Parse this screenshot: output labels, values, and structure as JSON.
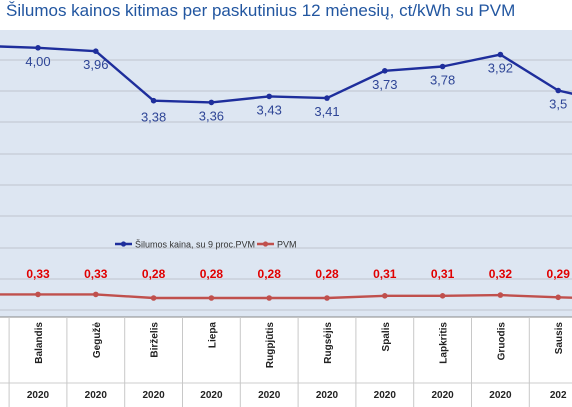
{
  "chart_data": {
    "type": "line",
    "title": "Šilumos kainos kitimas per paskutinius 12 mėnesių, ct/kWh su PVM",
    "categories": [
      {
        "month": "Balandis",
        "year": "2020"
      },
      {
        "month": "Gegužė",
        "year": "2020"
      },
      {
        "month": "Birželis",
        "year": "2020"
      },
      {
        "month": "Liepa",
        "year": "2020"
      },
      {
        "month": "Rugpjūtis",
        "year": "2020"
      },
      {
        "month": "Rugsėjis",
        "year": "2020"
      },
      {
        "month": "Spalis",
        "year": "2020"
      },
      {
        "month": "Lapkritis",
        "year": "2020"
      },
      {
        "month": "Gruodis",
        "year": "2020"
      },
      {
        "month": "Sausis",
        "year": "202"
      }
    ],
    "series": [
      {
        "name": "Šilumos kaina, su 9 proc.PVM",
        "color": "#1e2e9c",
        "label_color": "#2e4596",
        "values": [
          4.0,
          3.96,
          3.38,
          3.36,
          3.43,
          3.41,
          3.73,
          3.78,
          3.92,
          3.5
        ],
        "labels": [
          "4,00",
          "3,96",
          "3,38",
          "3,36",
          "3,43",
          "3,41",
          "3,73",
          "3,78",
          "3,92",
          "3,5"
        ]
      },
      {
        "name": "PVM",
        "color": "#c0504d",
        "label_color": "#e00000",
        "values": [
          0.33,
          0.33,
          0.28,
          0.28,
          0.28,
          0.28,
          0.31,
          0.31,
          0.32,
          0.29
        ],
        "labels": [
          "0,33",
          "0,33",
          "0,28",
          "0,28",
          "0,28",
          "0,28",
          "0,31",
          "0,31",
          "0,32",
          "0,29"
        ]
      }
    ],
    "legend_position": "bottom-left inside plot",
    "grid": true
  }
}
